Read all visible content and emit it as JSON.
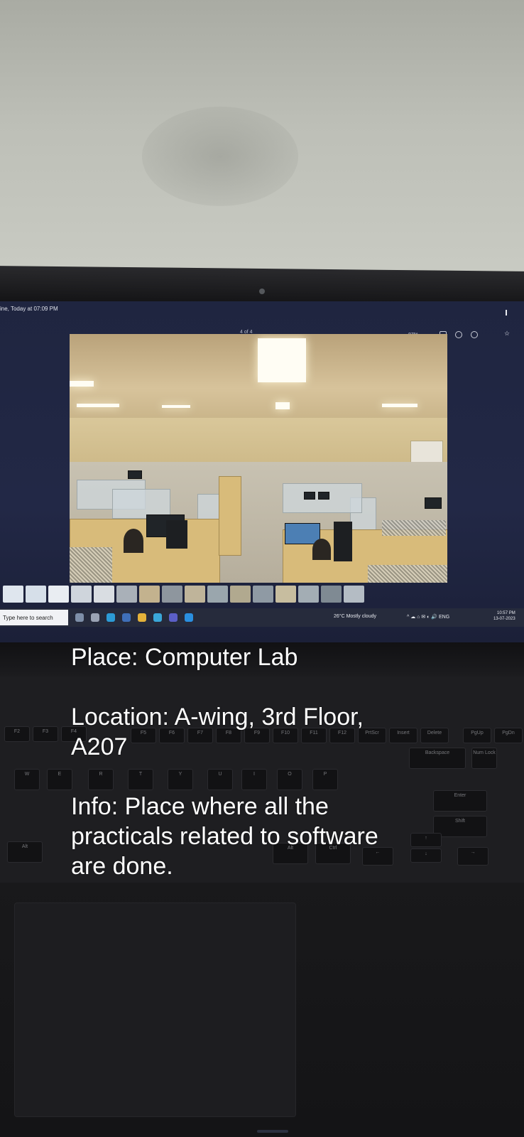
{
  "screen": {
    "window_title": "ine, Today at 07:09 PM",
    "image_counter": "4 of 4",
    "zoom_level": "87%",
    "search_placeholder": "Type here to search",
    "weather": "26°C Mostly cloudy",
    "language": "ENG",
    "time": "10:57 PM",
    "date": "13-07-2023"
  },
  "keyboard": {
    "f_row": [
      "F2",
      "F3",
      "F4",
      "F5",
      "F6",
      "F7",
      "F8",
      "F9",
      "F10",
      "F11",
      "F12",
      "PrtScr",
      "Insert",
      "Delete",
      "PgUp",
      "PgDn"
    ],
    "letters_row1": [
      "W",
      "E",
      "R",
      "T",
      "Y",
      "U",
      "I",
      "O",
      "P"
    ],
    "modifier_keys": [
      "Alt",
      "Ctrl",
      "Backspace",
      "Enter",
      "Shift",
      "Num Lock"
    ]
  },
  "caption": {
    "place": "Place: Computer Lab",
    "location_line1": "Location: A-wing, 3rd Floor,",
    "location_line2": "A207",
    "info_line1": "Info: Place where all the",
    "info_line2": "practicals related to software",
    "info_line3": "are done."
  }
}
